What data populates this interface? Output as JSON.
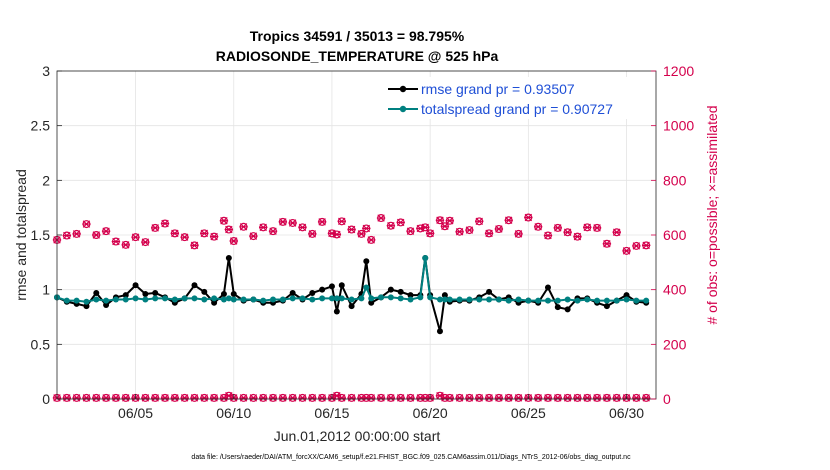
{
  "chart_data": {
    "type": "line",
    "title_line1": "Tropics 34591 / 35013 = 98.795%",
    "title_line2": "RADIOSONDE_TEMPERATURE @ 525 hPa",
    "xlabel": "Jun.01,2012 00:00:00 start",
    "ylabel_left": "rmse and totalspread",
    "ylabel_right": "# of obs: o=possible; ×=assimilated",
    "footnote": "data file: /Users/raeder/DAI/ATM_forcXX/CAM6_setup/f.e21.FHIST_BGC.f09_025.CAM6assim.011/Diags_NTrS_2012-06/obs_diag_output.nc",
    "xlim": [
      1,
      31.5
    ],
    "ylim_left": [
      0,
      3
    ],
    "ylim_right": [
      0,
      1200
    ],
    "xticks": [
      5,
      10,
      15,
      20,
      25,
      30
    ],
    "xtick_labels": [
      "06/05",
      "06/10",
      "06/15",
      "06/20",
      "06/25",
      "06/30"
    ],
    "yticks_left": [
      0,
      0.5,
      1,
      1.5,
      2,
      2.5,
      3
    ],
    "ytick_labels_left": [
      "0",
      "0.5",
      "1",
      "1.5",
      "2",
      "2.5",
      "3"
    ],
    "yticks_right": [
      0,
      200,
      400,
      600,
      800,
      1000,
      1200
    ],
    "ytick_labels_right": [
      "0",
      "200",
      "400",
      "600",
      "800",
      "1000",
      "1200"
    ],
    "legend": [
      {
        "label": "rmse grand pr = 0.93507",
        "color": "#000000"
      },
      {
        "label": "totalspread grand pr = 0.90727",
        "color": "#008080"
      }
    ],
    "colors": {
      "rmse": "#000000",
      "spread": "#008080",
      "obs": "#d4004c",
      "text_blue": "#1f4fd6",
      "grid": "#e4e4e4"
    },
    "x": [
      1.0,
      1.5,
      2.0,
      2.5,
      3.0,
      3.5,
      4.0,
      4.5,
      5.0,
      5.5,
      6.0,
      6.5,
      7.0,
      7.5,
      8.0,
      8.5,
      9.0,
      9.5,
      9.75,
      10.0,
      10.5,
      11.0,
      11.5,
      12.0,
      12.5,
      13.0,
      13.5,
      14.0,
      14.5,
      15.0,
      15.25,
      15.5,
      16.0,
      16.5,
      16.75,
      17.0,
      17.5,
      18.0,
      18.5,
      19.0,
      19.5,
      19.75,
      20.0,
      20.5,
      20.75,
      21.0,
      21.5,
      22.0,
      22.5,
      23.0,
      23.5,
      24.0,
      24.5,
      25.0,
      25.5,
      26.0,
      26.5,
      27.0,
      27.5,
      28.0,
      28.5,
      29.0,
      29.5,
      30.0,
      30.5,
      31.0
    ],
    "series": [
      {
        "name": "rmse",
        "values": [
          0.93,
          0.89,
          0.87,
          0.85,
          0.97,
          0.86,
          0.93,
          0.95,
          1.04,
          0.96,
          0.97,
          0.93,
          0.88,
          0.92,
          1.04,
          0.98,
          0.88,
          0.96,
          1.29,
          0.96,
          0.9,
          0.91,
          0.88,
          0.88,
          0.9,
          0.97,
          0.91,
          0.97,
          1.0,
          1.03,
          0.8,
          1.04,
          0.85,
          0.96,
          1.26,
          0.88,
          0.93,
          1.0,
          0.98,
          0.95,
          0.95,
          1.29,
          0.95,
          0.62,
          0.95,
          0.89,
          0.9,
          0.9,
          0.93,
          0.98,
          0.91,
          0.93,
          0.88,
          0.9,
          0.88,
          1.02,
          0.84,
          0.82,
          0.92,
          0.92,
          0.88,
          0.85,
          0.9,
          0.95,
          0.89,
          0.88
        ]
      },
      {
        "name": "totalspread",
        "values": [
          0.93,
          0.9,
          0.9,
          0.89,
          0.91,
          0.9,
          0.91,
          0.91,
          0.92,
          0.91,
          0.92,
          0.92,
          0.91,
          0.92,
          0.92,
          0.91,
          0.92,
          0.91,
          0.92,
          0.91,
          0.91,
          0.91,
          0.9,
          0.91,
          0.91,
          0.92,
          0.92,
          0.91,
          0.92,
          0.92,
          0.92,
          0.92,
          0.91,
          0.92,
          1.02,
          0.92,
          0.93,
          0.93,
          0.92,
          0.91,
          0.93,
          1.29,
          0.93,
          0.91,
          0.91,
          0.91,
          0.91,
          0.91,
          0.91,
          0.91,
          0.91,
          0.9,
          0.91,
          0.9,
          0.9,
          0.9,
          0.9,
          0.91,
          0.9,
          0.91,
          0.9,
          0.9,
          0.9,
          0.91,
          0.9,
          0.9
        ]
      },
      {
        "name": "obs_possible",
        "values": [
          582,
          598,
          604,
          640,
          600,
          614,
          576,
          564,
          592,
          574,
          626,
          642,
          606,
          592,
          562,
          606,
          594,
          652,
          620,
          578,
          630,
          596,
          628,
          614,
          648,
          644,
          628,
          604,
          648,
          606,
          602,
          650,
          620,
          604,
          624,
          582,
          662,
          634,
          646,
          614,
          624,
          628,
          606,
          654,
          632,
          652,
          612,
          618,
          650,
          606,
          622,
          654,
          604,
          664,
          630,
          598,
          626,
          610,
          594,
          628,
          626,
          568,
          610,
          542,
          560,
          562
        ]
      },
      {
        "name": "obs_assimilated",
        "values": [
          4,
          4,
          4,
          4,
          4,
          4,
          4,
          4,
          4,
          4,
          4,
          4,
          4,
          4,
          4,
          4,
          4,
          4,
          12,
          4,
          4,
          4,
          4,
          4,
          4,
          4,
          4,
          4,
          4,
          4,
          12,
          4,
          4,
          4,
          4,
          4,
          4,
          4,
          4,
          4,
          4,
          4,
          4,
          12,
          4,
          4,
          4,
          4,
          4,
          4,
          4,
          4,
          4,
          4,
          4,
          4,
          4,
          4,
          4,
          4,
          4,
          4,
          4,
          4,
          4,
          4
        ]
      }
    ]
  }
}
